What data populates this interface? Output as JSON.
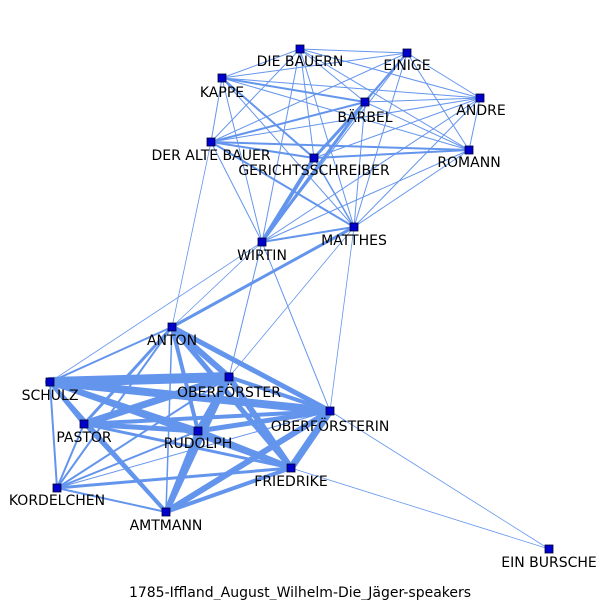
{
  "caption": "1785-Iffland_August_Wilhelm-Die_Jäger-speakers",
  "colors": {
    "edge": "#6495ED",
    "node_fill": "#0000CC",
    "node_stroke": "#000033"
  },
  "nodes": [
    {
      "id": "die_bauern",
      "label": "DIE BAUERN"
    },
    {
      "id": "einige",
      "label": "EINIGE"
    },
    {
      "id": "kappe",
      "label": "KAPPE"
    },
    {
      "id": "andre",
      "label": "ANDRE"
    },
    {
      "id": "barbel",
      "label": "BÄRBEL"
    },
    {
      "id": "der_alte_bauer",
      "label": "DER ALTE BAUER"
    },
    {
      "id": "romann",
      "label": "ROMANN"
    },
    {
      "id": "gerichtsschreiber",
      "label": "GERICHTSSCHREIBER"
    },
    {
      "id": "matthes",
      "label": "MATTHES"
    },
    {
      "id": "wirtin",
      "label": "WIRTIN"
    },
    {
      "id": "anton",
      "label": "ANTON"
    },
    {
      "id": "schulz",
      "label": "SCHULZ"
    },
    {
      "id": "oberforster",
      "label": "OBERFÖRSTER"
    },
    {
      "id": "oberforsterin",
      "label": "OBERFÖRSTERIN"
    },
    {
      "id": "pastor",
      "label": "PASTOR"
    },
    {
      "id": "rudolph",
      "label": "RUDOLPH"
    },
    {
      "id": "friedrike",
      "label": "FRIEDRIKE"
    },
    {
      "id": "kordelchen",
      "label": "KORDELCHEN"
    },
    {
      "id": "amtmann",
      "label": "AMTMANN"
    },
    {
      "id": "ein_bursche",
      "label": "EIN BURSCHE"
    }
  ],
  "edges": [
    [
      "die_bauern",
      "einige",
      1
    ],
    [
      "die_bauern",
      "kappe",
      1
    ],
    [
      "die_bauern",
      "andre",
      1
    ],
    [
      "die_bauern",
      "barbel",
      1
    ],
    [
      "die_bauern",
      "der_alte_bauer",
      1
    ],
    [
      "die_bauern",
      "romann",
      1
    ],
    [
      "die_bauern",
      "gerichtsschreiber",
      1
    ],
    [
      "die_bauern",
      "matthes",
      1
    ],
    [
      "die_bauern",
      "wirtin",
      1
    ],
    [
      "einige",
      "kappe",
      1
    ],
    [
      "einige",
      "andre",
      1
    ],
    [
      "einige",
      "barbel",
      2
    ],
    [
      "einige",
      "der_alte_bauer",
      1
    ],
    [
      "einige",
      "romann",
      1
    ],
    [
      "einige",
      "gerichtsschreiber",
      1
    ],
    [
      "einige",
      "matthes",
      1
    ],
    [
      "einige",
      "wirtin",
      1
    ],
    [
      "kappe",
      "andre",
      1
    ],
    [
      "kappe",
      "barbel",
      2
    ],
    [
      "kappe",
      "der_alte_bauer",
      1
    ],
    [
      "kappe",
      "romann",
      1
    ],
    [
      "kappe",
      "gerichtsschreiber",
      2
    ],
    [
      "kappe",
      "matthes",
      1
    ],
    [
      "kappe",
      "wirtin",
      1
    ],
    [
      "andre",
      "barbel",
      1
    ],
    [
      "andre",
      "der_alte_bauer",
      1
    ],
    [
      "andre",
      "romann",
      1
    ],
    [
      "andre",
      "gerichtsschreiber",
      1
    ],
    [
      "andre",
      "matthes",
      1
    ],
    [
      "andre",
      "wirtin",
      1
    ],
    [
      "barbel",
      "der_alte_bauer",
      2
    ],
    [
      "barbel",
      "romann",
      1
    ],
    [
      "barbel",
      "gerichtsschreiber",
      3
    ],
    [
      "barbel",
      "matthes",
      1
    ],
    [
      "barbel",
      "wirtin",
      3
    ],
    [
      "der_alte_bauer",
      "romann",
      2
    ],
    [
      "der_alte_bauer",
      "gerichtsschreiber",
      2
    ],
    [
      "der_alte_bauer",
      "matthes",
      2
    ],
    [
      "der_alte_bauer",
      "wirtin",
      1
    ],
    [
      "der_alte_bauer",
      "anton",
      0.5
    ],
    [
      "romann",
      "gerichtsschreiber",
      2
    ],
    [
      "romann",
      "matthes",
      1
    ],
    [
      "romann",
      "wirtin",
      1
    ],
    [
      "gerichtsschreiber",
      "matthes",
      1.5
    ],
    [
      "gerichtsschreiber",
      "wirtin",
      4
    ],
    [
      "matthes",
      "wirtin",
      2
    ],
    [
      "matthes",
      "anton",
      3
    ],
    [
      "matthes",
      "oberforster",
      0.5
    ],
    [
      "matthes",
      "oberforsterin",
      0.5
    ],
    [
      "wirtin",
      "anton",
      0.5
    ],
    [
      "wirtin",
      "schulz",
      0.5
    ],
    [
      "wirtin",
      "oberforster",
      1
    ],
    [
      "wirtin",
      "oberforsterin",
      1
    ],
    [
      "anton",
      "schulz",
      2
    ],
    [
      "anton",
      "oberforster",
      6
    ],
    [
      "anton",
      "oberforsterin",
      5
    ],
    [
      "anton",
      "pastor",
      3
    ],
    [
      "anton",
      "rudolph",
      4
    ],
    [
      "anton",
      "friedrike",
      5
    ],
    [
      "anton",
      "kordelchen",
      2
    ],
    [
      "anton",
      "amtmann",
      1.5
    ],
    [
      "schulz",
      "oberforster",
      10
    ],
    [
      "schulz",
      "oberforsterin",
      8
    ],
    [
      "schulz",
      "pastor",
      4
    ],
    [
      "schulz",
      "rudolph",
      6
    ],
    [
      "schulz",
      "friedrike",
      5
    ],
    [
      "schulz",
      "kordelchen",
      2
    ],
    [
      "schulz",
      "amtmann",
      4
    ],
    [
      "oberforster",
      "oberforsterin",
      4
    ],
    [
      "oberforster",
      "pastor",
      7
    ],
    [
      "oberforster",
      "rudolph",
      6
    ],
    [
      "oberforster",
      "friedrike",
      6
    ],
    [
      "oberforster",
      "kordelchen",
      2
    ],
    [
      "oberforster",
      "amtmann",
      6
    ],
    [
      "oberforsterin",
      "pastor",
      4
    ],
    [
      "oberforsterin",
      "rudolph",
      5
    ],
    [
      "oberforsterin",
      "friedrike",
      7
    ],
    [
      "oberforsterin",
      "amtmann",
      6
    ],
    [
      "oberforsterin",
      "kordelchen",
      1
    ],
    [
      "oberforsterin",
      "ein_bursche",
      0.5
    ],
    [
      "pastor",
      "rudolph",
      5
    ],
    [
      "pastor",
      "friedrike",
      3
    ],
    [
      "pastor",
      "kordelchen",
      2
    ],
    [
      "pastor",
      "amtmann",
      3
    ],
    [
      "rudolph",
      "friedrike",
      6
    ],
    [
      "rudolph",
      "kordelchen",
      2
    ],
    [
      "rudolph",
      "amtmann",
      5
    ],
    [
      "friedrike",
      "kordelchen",
      3
    ],
    [
      "friedrike",
      "amtmann",
      4
    ],
    [
      "friedrike",
      "ein_bursche",
      0.5
    ],
    [
      "kordelchen",
      "amtmann",
      2
    ]
  ]
}
